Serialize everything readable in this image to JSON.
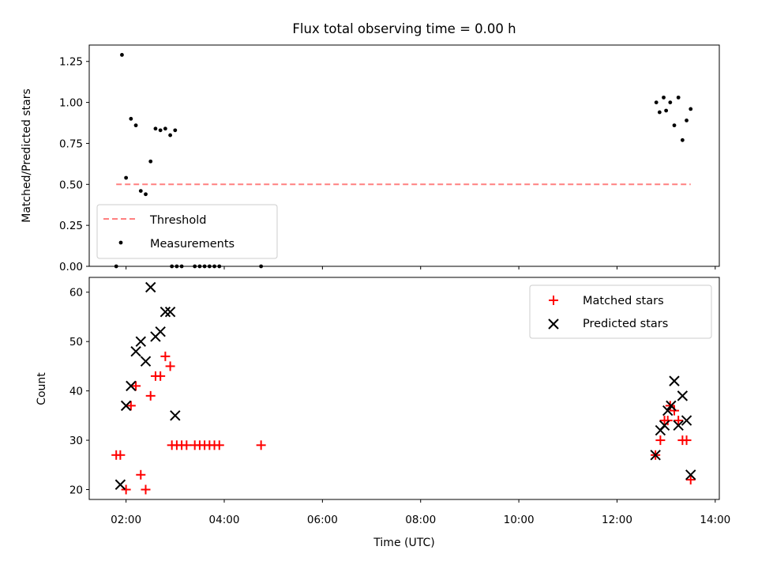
{
  "chart_data": [
    {
      "type": "scatter",
      "title": "Flux total observing time = 0.00 h",
      "xlabel": "",
      "ylabel": "Matched/Predicted stars",
      "xlim": [
        "01:15",
        "14:05"
      ],
      "ylim": [
        0,
        1.35
      ],
      "yticks": [
        "0.00",
        "0.25",
        "0.50",
        "0.75",
        "1.00",
        "1.25"
      ],
      "ytick_values": [
        0,
        0.25,
        0.5,
        0.75,
        1.0,
        1.25
      ],
      "grid": false,
      "legend_position": "lower-left",
      "threshold": {
        "name": "Threshold",
        "value": 0.5,
        "x_start": "01:48",
        "x_end": "13:30",
        "color": "#ff8080",
        "style": "dashed"
      },
      "series": [
        {
          "name": "Measurements",
          "marker": "dot",
          "color": "#000000",
          "points": [
            {
              "x": "01:48",
              "y": 0.0
            },
            {
              "x": "01:55",
              "y": 1.29
            },
            {
              "x": "02:00",
              "y": 0.54
            },
            {
              "x": "02:06",
              "y": 0.9
            },
            {
              "x": "02:12",
              "y": 0.86
            },
            {
              "x": "02:18",
              "y": 0.46
            },
            {
              "x": "02:24",
              "y": 0.44
            },
            {
              "x": "02:30",
              "y": 0.64
            },
            {
              "x": "02:36",
              "y": 0.84
            },
            {
              "x": "02:42",
              "y": 0.83
            },
            {
              "x": "02:48",
              "y": 0.84
            },
            {
              "x": "02:54",
              "y": 0.8
            },
            {
              "x": "03:00",
              "y": 0.83
            },
            {
              "x": "02:56",
              "y": 0.0
            },
            {
              "x": "03:02",
              "y": 0.0
            },
            {
              "x": "03:08",
              "y": 0.0
            },
            {
              "x": "03:24",
              "y": 0.0
            },
            {
              "x": "03:30",
              "y": 0.0
            },
            {
              "x": "03:36",
              "y": 0.0
            },
            {
              "x": "03:42",
              "y": 0.0
            },
            {
              "x": "03:48",
              "y": 0.0
            },
            {
              "x": "03:54",
              "y": 0.0
            },
            {
              "x": "04:45",
              "y": 0.0
            },
            {
              "x": "12:48",
              "y": 1.0
            },
            {
              "x": "12:52",
              "y": 0.94
            },
            {
              "x": "12:57",
              "y": 1.03
            },
            {
              "x": "13:00",
              "y": 0.95
            },
            {
              "x": "13:05",
              "y": 1.0
            },
            {
              "x": "13:10",
              "y": 0.86
            },
            {
              "x": "13:15",
              "y": 1.03
            },
            {
              "x": "13:20",
              "y": 0.77
            },
            {
              "x": "13:25",
              "y": 0.89
            },
            {
              "x": "13:30",
              "y": 0.96
            }
          ]
        }
      ]
    },
    {
      "type": "scatter",
      "title": "",
      "xlabel": "Time (UTC)",
      "ylabel": "Count",
      "xlim": [
        "01:15",
        "14:05"
      ],
      "ylim": [
        18,
        63
      ],
      "xticks": [
        "02:00",
        "04:00",
        "06:00",
        "08:00",
        "10:00",
        "12:00",
        "14:00"
      ],
      "yticks": [
        "20",
        "30",
        "40",
        "50",
        "60"
      ],
      "ytick_values": [
        20,
        30,
        40,
        50,
        60
      ],
      "grid": false,
      "legend_position": "upper-right",
      "series": [
        {
          "name": "Matched stars",
          "marker": "plus",
          "color": "#ff0000",
          "points": [
            {
              "x": "01:48",
              "y": 27
            },
            {
              "x": "01:53",
              "y": 27
            },
            {
              "x": "02:00",
              "y": 20
            },
            {
              "x": "02:06",
              "y": 37
            },
            {
              "x": "02:12",
              "y": 41
            },
            {
              "x": "02:18",
              "y": 23
            },
            {
              "x": "02:24",
              "y": 20
            },
            {
              "x": "02:30",
              "y": 39
            },
            {
              "x": "02:36",
              "y": 43
            },
            {
              "x": "02:42",
              "y": 43
            },
            {
              "x": "02:48",
              "y": 47
            },
            {
              "x": "02:54",
              "y": 45
            },
            {
              "x": "02:56",
              "y": 29
            },
            {
              "x": "03:02",
              "y": 29
            },
            {
              "x": "03:08",
              "y": 29
            },
            {
              "x": "03:14",
              "y": 29
            },
            {
              "x": "03:24",
              "y": 29
            },
            {
              "x": "03:30",
              "y": 29
            },
            {
              "x": "03:36",
              "y": 29
            },
            {
              "x": "03:42",
              "y": 29
            },
            {
              "x": "03:48",
              "y": 29
            },
            {
              "x": "03:54",
              "y": 29
            },
            {
              "x": "04:45",
              "y": 29
            },
            {
              "x": "12:47",
              "y": 27
            },
            {
              "x": "12:53",
              "y": 30
            },
            {
              "x": "12:58",
              "y": 34
            },
            {
              "x": "13:02",
              "y": 34
            },
            {
              "x": "13:05",
              "y": 37
            },
            {
              "x": "13:10",
              "y": 36
            },
            {
              "x": "13:15",
              "y": 34
            },
            {
              "x": "13:20",
              "y": 30
            },
            {
              "x": "13:25",
              "y": 30
            },
            {
              "x": "13:30",
              "y": 22
            }
          ]
        },
        {
          "name": "Predicted stars",
          "marker": "x",
          "color": "#000000",
          "points": [
            {
              "x": "01:53",
              "y": 21
            },
            {
              "x": "02:00",
              "y": 37
            },
            {
              "x": "02:06",
              "y": 41
            },
            {
              "x": "02:12",
              "y": 48
            },
            {
              "x": "02:18",
              "y": 50
            },
            {
              "x": "02:24",
              "y": 46
            },
            {
              "x": "02:30",
              "y": 61
            },
            {
              "x": "02:36",
              "y": 51
            },
            {
              "x": "02:42",
              "y": 52
            },
            {
              "x": "02:48",
              "y": 56
            },
            {
              "x": "02:54",
              "y": 56
            },
            {
              "x": "03:00",
              "y": 35
            },
            {
              "x": "12:47",
              "y": 27
            },
            {
              "x": "12:53",
              "y": 32
            },
            {
              "x": "12:58",
              "y": 33
            },
            {
              "x": "13:02",
              "y": 36
            },
            {
              "x": "13:06",
              "y": 37
            },
            {
              "x": "13:10",
              "y": 42
            },
            {
              "x": "13:15",
              "y": 33
            },
            {
              "x": "13:20",
              "y": 39
            },
            {
              "x": "13:25",
              "y": 34
            },
            {
              "x": "13:30",
              "y": 23
            }
          ]
        }
      ]
    }
  ]
}
